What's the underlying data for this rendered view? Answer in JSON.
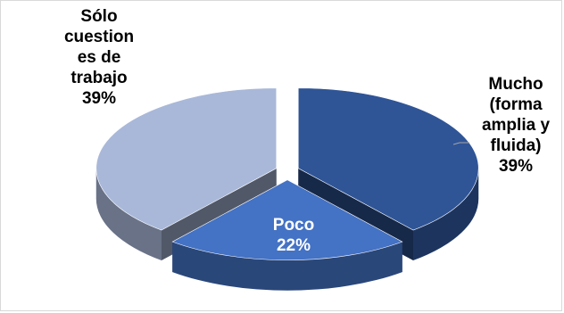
{
  "chart_data": {
    "type": "pie",
    "three_d": true,
    "exploded": true,
    "title": "",
    "legend": "none",
    "slices": [
      {
        "label_lines": [
          "Mucho",
          "(forma",
          "amplia y",
          "fluida)"
        ],
        "percent_text": "39%",
        "value": 39,
        "color": "#2f5597"
      },
      {
        "label_lines": [
          "Poco"
        ],
        "percent_text": "22%",
        "value": 22,
        "color": "#4472c4"
      },
      {
        "label_lines": [
          "Sólo",
          "cuestion",
          "es de",
          "trabajo"
        ],
        "percent_text": "39%",
        "value": 39,
        "color": "#a9b8d9"
      }
    ]
  }
}
